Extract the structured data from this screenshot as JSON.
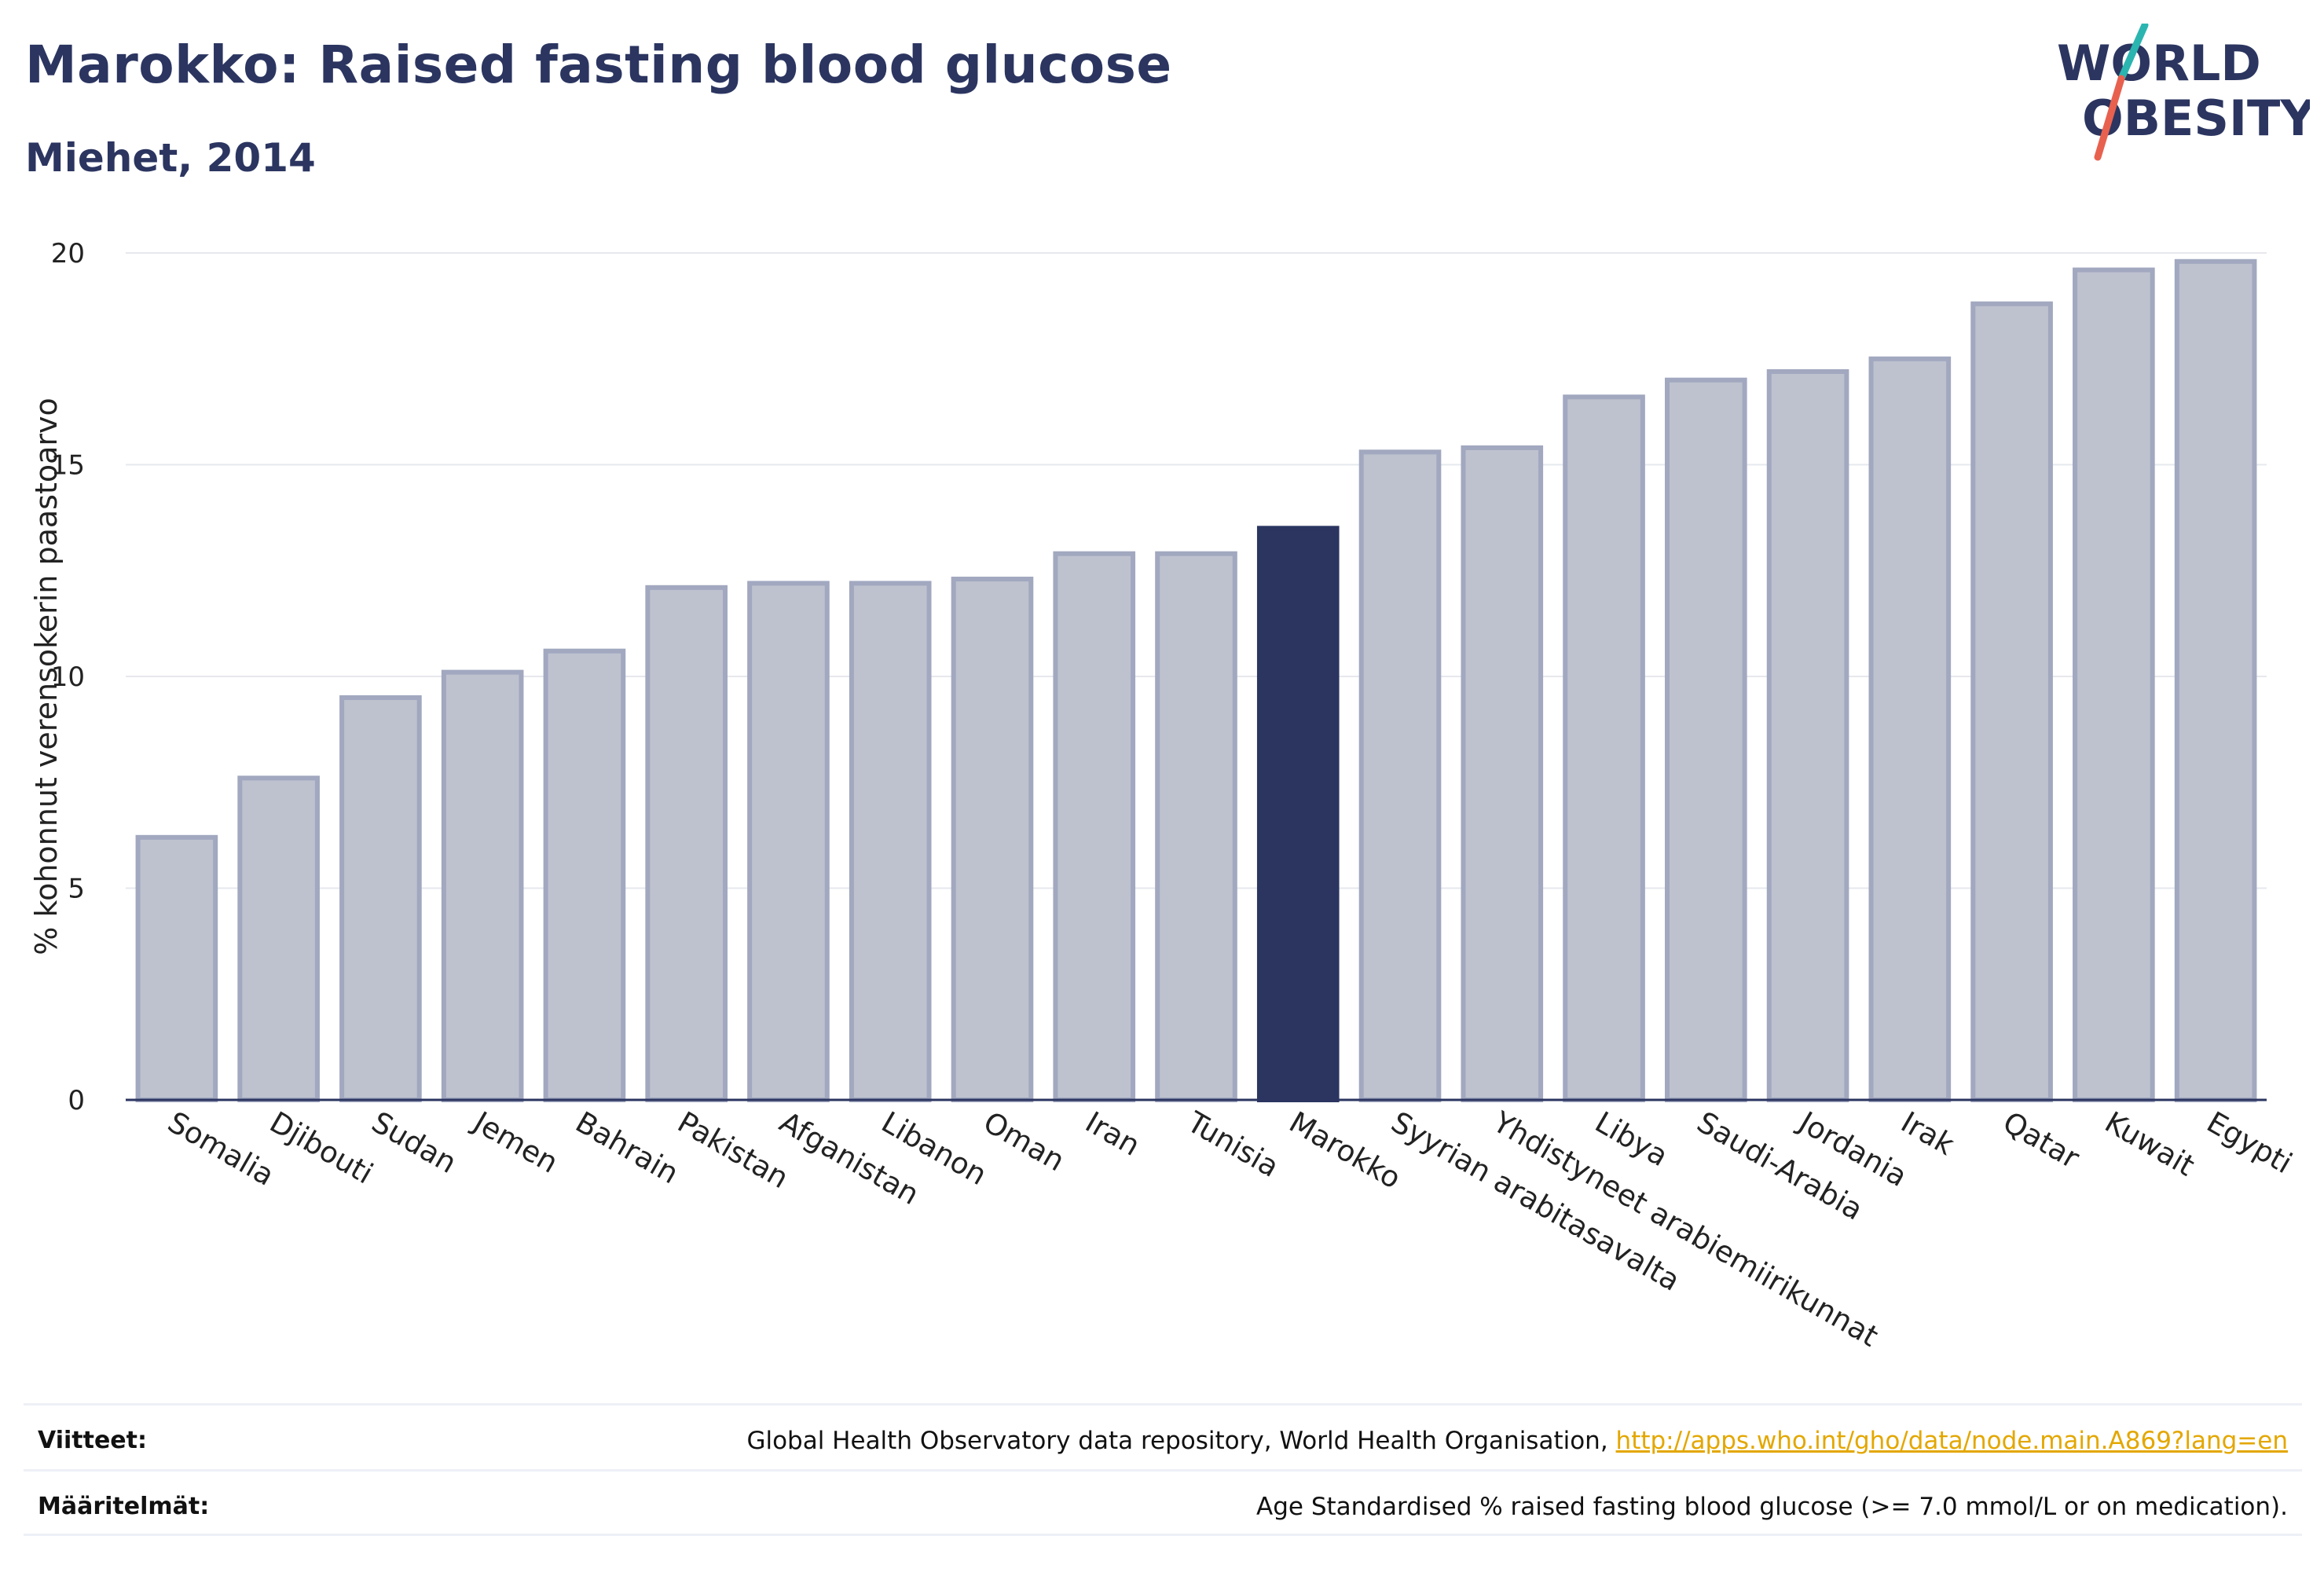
{
  "header": {
    "title": "Marokko: Raised fasting blood glucose",
    "subtitle": "Miehet, 2014"
  },
  "logo": {
    "line1": "WORLD",
    "line2": "OBESITY",
    "colors": {
      "text": "#2b3560",
      "slash_top": "#2bb5b0",
      "slash_bottom": "#e8614f"
    }
  },
  "colors": {
    "bar_fill": "#bec2cf",
    "bar_stroke": "#a1a8bf",
    "highlight": "#2b3560",
    "grid": "#e6e8ee",
    "axis": "#2b3560"
  },
  "chart_data": {
    "type": "bar",
    "ylabel": "% kohonnut verensokerin paastoarvo",
    "ylim": [
      0,
      20
    ],
    "yticks": [
      0,
      5,
      10,
      15,
      20
    ],
    "grid": true,
    "highlight": "Marokko",
    "categories": [
      "Somalia",
      "Djibouti",
      "Sudan",
      "Jemen",
      "Bahrain",
      "Pakistan",
      "Afganistan",
      "Libanon",
      "Oman",
      "Iran",
      "Tunisia",
      "Marokko",
      "Syyrian arabitasavalta",
      "Yhdistyneet arabiemiirikunnat",
      "Libya",
      "Saudi-Arabia",
      "Jordania",
      "Irak",
      "Qatar",
      "Kuwait",
      "Egypti"
    ],
    "values": [
      6.2,
      7.6,
      9.5,
      10.1,
      10.6,
      12.1,
      12.2,
      12.2,
      12.3,
      12.9,
      12.9,
      13.5,
      15.3,
      15.4,
      16.6,
      17.0,
      17.2,
      17.5,
      18.8,
      19.6,
      19.8
    ]
  },
  "footer": {
    "references_label": "Viitteet:",
    "references_text": "Global Health Observatory data repository, World Health Organisation, ",
    "references_link": "http://apps.who.int/gho/data/node.main.A869?lang=en",
    "definitions_label": "Määritelmät:",
    "definitions_text": "Age Standardised % raised fasting blood glucose (>= 7.0 mmol/L or on medication)."
  }
}
